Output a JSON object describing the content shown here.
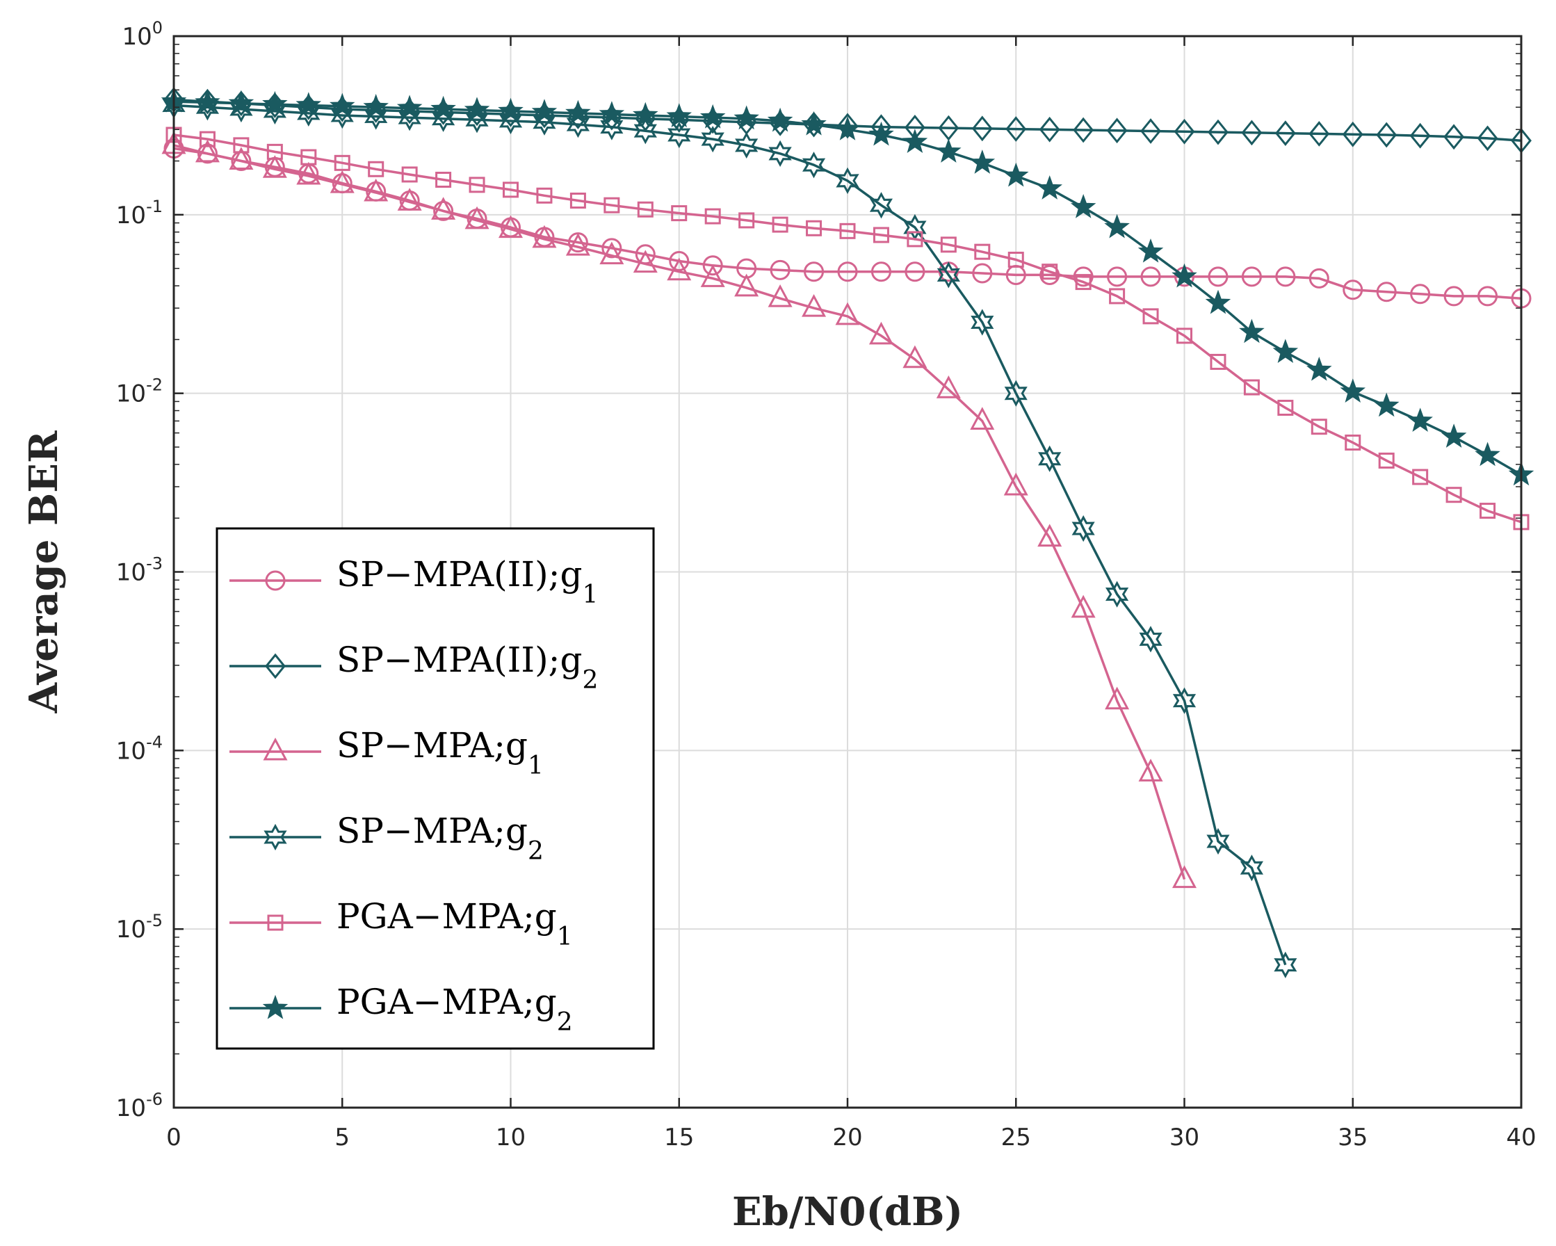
{
  "chart_data": {
    "type": "line",
    "xlabel": "Eb/N0(dB)",
    "ylabel": "Average BER",
    "xlim": [
      0,
      40
    ],
    "ylim": [
      1e-06,
      1
    ],
    "yscale": "log",
    "grid": true,
    "legend_position": "middle-left",
    "xticks": [
      0,
      5,
      10,
      15,
      20,
      25,
      30,
      35,
      40
    ],
    "xtick_labels": [
      "0",
      "5",
      "10",
      "15",
      "20",
      "25",
      "30",
      "35",
      "40"
    ],
    "yticks": [
      {
        "value": 1,
        "base": "10",
        "exp": "0"
      },
      {
        "value": 0.1,
        "base": "10",
        "exp": "-1"
      },
      {
        "value": 0.01,
        "base": "10",
        "exp": "-2"
      },
      {
        "value": 0.001,
        "base": "10",
        "exp": "-3"
      },
      {
        "value": 0.0001,
        "base": "10",
        "exp": "-4"
      },
      {
        "value": 1e-05,
        "base": "10",
        "exp": "-5"
      },
      {
        "value": 1e-06,
        "base": "10",
        "exp": "-6"
      }
    ],
    "series": [
      {
        "name": "SP-MPA(II);g1",
        "label_main": "SP−MPA(II);g",
        "label_sub": "1",
        "color": "#d4648f",
        "marker": "circle",
        "x": [
          0,
          1,
          2,
          3,
          4,
          5,
          6,
          7,
          8,
          9,
          10,
          11,
          12,
          13,
          14,
          15,
          16,
          17,
          18,
          19,
          20,
          21,
          22,
          23,
          24,
          25,
          26,
          27,
          28,
          29,
          30,
          31,
          32,
          33,
          34,
          35,
          36,
          37,
          38,
          39,
          40
        ],
        "y": [
          0.235,
          0.22,
          0.2,
          0.185,
          0.17,
          0.15,
          0.135,
          0.12,
          0.105,
          0.095,
          0.085,
          0.075,
          0.07,
          0.065,
          0.06,
          0.055,
          0.052,
          0.05,
          0.049,
          0.048,
          0.048,
          0.048,
          0.048,
          0.048,
          0.047,
          0.046,
          0.046,
          0.045,
          0.045,
          0.045,
          0.045,
          0.045,
          0.045,
          0.045,
          0.044,
          0.038,
          0.037,
          0.036,
          0.035,
          0.035,
          0.034
        ]
      },
      {
        "name": "SP-MPA(II);g2",
        "label_main": "SP−MPA(II);g",
        "label_sub": "2",
        "color": "#1a5a60",
        "marker": "diamond",
        "x": [
          0,
          1,
          2,
          3,
          4,
          5,
          6,
          7,
          8,
          9,
          10,
          11,
          12,
          13,
          14,
          15,
          16,
          17,
          18,
          19,
          20,
          21,
          22,
          23,
          24,
          25,
          26,
          27,
          28,
          29,
          30,
          31,
          32,
          33,
          34,
          35,
          36,
          37,
          38,
          39,
          40
        ],
        "y": [
          0.44,
          0.43,
          0.42,
          0.41,
          0.4,
          0.39,
          0.385,
          0.38,
          0.375,
          0.37,
          0.365,
          0.36,
          0.355,
          0.35,
          0.345,
          0.34,
          0.335,
          0.33,
          0.325,
          0.32,
          0.315,
          0.31,
          0.308,
          0.306,
          0.304,
          0.302,
          0.3,
          0.298,
          0.296,
          0.294,
          0.292,
          0.29,
          0.288,
          0.286,
          0.284,
          0.282,
          0.28,
          0.277,
          0.273,
          0.268,
          0.26
        ]
      },
      {
        "name": "SP-MPA;g1",
        "label_main": "SP−MPA;g",
        "label_sub": "1",
        "color": "#d4648f",
        "marker": "triangle",
        "x": [
          0,
          1,
          2,
          3,
          4,
          5,
          6,
          7,
          8,
          9,
          10,
          11,
          12,
          13,
          14,
          15,
          16,
          17,
          18,
          19,
          20,
          21,
          22,
          23,
          24,
          25,
          26,
          27,
          28,
          29,
          30
        ],
        "y": [
          0.245,
          0.22,
          0.2,
          0.18,
          0.165,
          0.148,
          0.133,
          0.118,
          0.105,
          0.093,
          0.083,
          0.073,
          0.066,
          0.059,
          0.053,
          0.048,
          0.044,
          0.039,
          0.034,
          0.03,
          0.027,
          0.021,
          0.0155,
          0.0105,
          0.007,
          0.003,
          0.00155,
          0.00062,
          0.00019,
          7.5e-05,
          1.9e-05
        ]
      },
      {
        "name": "SP-MPA;g2",
        "label_main": "SP−MPA;g",
        "label_sub": "2",
        "color": "#1a5a60",
        "marker": "hexagram",
        "x": [
          0,
          1,
          2,
          3,
          4,
          5,
          6,
          7,
          8,
          9,
          10,
          11,
          12,
          13,
          14,
          15,
          16,
          17,
          18,
          19,
          20,
          21,
          22,
          23,
          24,
          25,
          26,
          27,
          28,
          29,
          30,
          31,
          32,
          33
        ],
        "y": [
          0.41,
          0.4,
          0.39,
          0.38,
          0.37,
          0.36,
          0.355,
          0.35,
          0.345,
          0.34,
          0.335,
          0.33,
          0.32,
          0.31,
          0.295,
          0.28,
          0.265,
          0.245,
          0.22,
          0.19,
          0.155,
          0.113,
          0.085,
          0.046,
          0.025,
          0.01,
          0.0043,
          0.00175,
          0.00075,
          0.00042,
          0.00019,
          3.1e-05,
          2.2e-05,
          6.3e-06
        ]
      },
      {
        "name": "PGA-MPA;g1",
        "label_main": "PGA−MPA;g",
        "label_sub": "1",
        "color": "#d4648f",
        "marker": "square",
        "x": [
          0,
          1,
          2,
          3,
          4,
          5,
          6,
          7,
          8,
          9,
          10,
          11,
          12,
          13,
          14,
          15,
          16,
          17,
          18,
          19,
          20,
          21,
          22,
          23,
          24,
          25,
          26,
          27,
          28,
          29,
          30,
          31,
          32,
          33,
          34,
          35,
          36,
          37,
          38,
          39,
          40
        ],
        "y": [
          0.28,
          0.265,
          0.245,
          0.225,
          0.21,
          0.195,
          0.18,
          0.168,
          0.157,
          0.147,
          0.138,
          0.128,
          0.12,
          0.113,
          0.107,
          0.102,
          0.098,
          0.093,
          0.088,
          0.084,
          0.081,
          0.077,
          0.073,
          0.068,
          0.062,
          0.056,
          0.048,
          0.042,
          0.035,
          0.027,
          0.021,
          0.015,
          0.0108,
          0.0083,
          0.0065,
          0.0053,
          0.0042,
          0.0034,
          0.0027,
          0.0022,
          0.0019
        ]
      },
      {
        "name": "PGA-MPA;g2",
        "label_main": "PGA−MPA;g",
        "label_sub": "2",
        "color": "#1a5a60",
        "marker": "star",
        "x": [
          0,
          1,
          2,
          3,
          4,
          5,
          6,
          7,
          8,
          9,
          10,
          11,
          12,
          13,
          14,
          15,
          16,
          17,
          18,
          19,
          20,
          21,
          22,
          23,
          24,
          25,
          26,
          27,
          28,
          29,
          30,
          31,
          32,
          33,
          34,
          35,
          36,
          37,
          38,
          39,
          40
        ],
        "y": [
          0.43,
          0.425,
          0.42,
          0.415,
          0.41,
          0.405,
          0.4,
          0.395,
          0.39,
          0.385,
          0.38,
          0.375,
          0.37,
          0.365,
          0.36,
          0.355,
          0.35,
          0.345,
          0.335,
          0.32,
          0.3,
          0.28,
          0.255,
          0.225,
          0.195,
          0.165,
          0.14,
          0.11,
          0.085,
          0.062,
          0.045,
          0.032,
          0.022,
          0.017,
          0.0135,
          0.0102,
          0.0085,
          0.007,
          0.0057,
          0.0045,
          0.0035
        ]
      }
    ]
  }
}
